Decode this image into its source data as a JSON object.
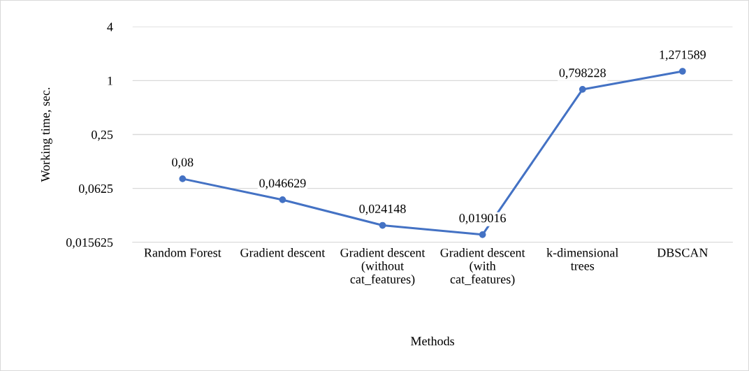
{
  "chart_data": {
    "type": "line",
    "xlabel": "Methods",
    "ylabel": "Working time, sec.",
    "categories": [
      "Random Forest",
      "Gradient descent",
      "Gradient descent (without cat_features)",
      "Gradient descent (with cat_features)",
      "k-dimensional trees",
      "DBSCAN"
    ],
    "series": [
      {
        "color": "#4472c4",
        "values": [
          0.08,
          0.046629,
          0.024148,
          0.019016,
          0.798228,
          1.271589
        ],
        "value_labels": [
          "0,08",
          "0,046629",
          "0,024148",
          "0,019016",
          "0,798228",
          "1,271589"
        ]
      }
    ],
    "log": true,
    "ylim": [
      0.015625,
      4
    ],
    "yticks": [
      {
        "value": 0.015625,
        "label": "0,015625"
      },
      {
        "value": 0.0625,
        "label": "0,0625"
      },
      {
        "value": 0.25,
        "label": "0,25"
      },
      {
        "value": 1,
        "label": "1"
      },
      {
        "value": 4,
        "label": "4"
      }
    ],
    "grid": "y",
    "marker": "circle",
    "line_style": "solid"
  }
}
